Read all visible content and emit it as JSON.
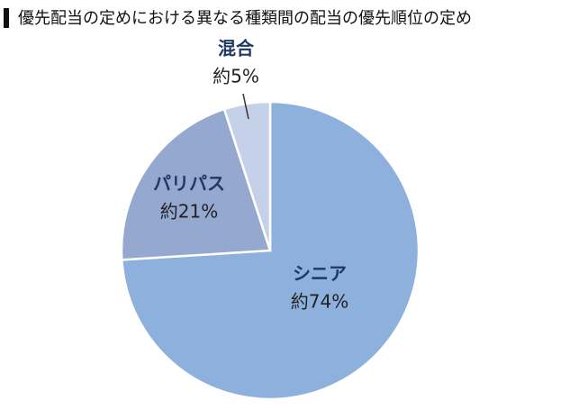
{
  "chart_data": {
    "type": "pie",
    "title": "優先配当の定めにおける異なる種類間の配当の優先順位の定め",
    "categories": [
      "シニア",
      "パリパス",
      "混合"
    ],
    "values": [
      74,
      21,
      5
    ],
    "value_labels": [
      "約74%",
      "約21%",
      "約5%"
    ],
    "colors": [
      "#8eb0dc",
      "#95a8cf",
      "#c5d1e8"
    ]
  }
}
